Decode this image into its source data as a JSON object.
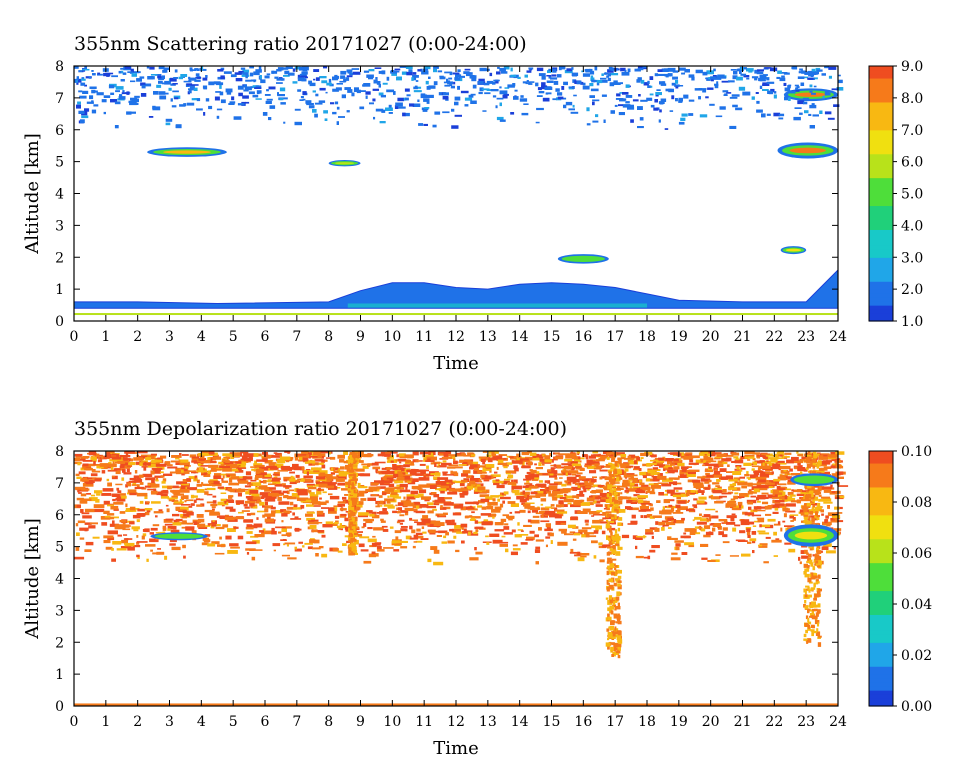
{
  "chart_data": [
    {
      "type": "heatmap",
      "title": "355nm Scattering ratio  20171027 (0:00-24:00)",
      "xlabel": "Time",
      "ylabel": "Altitude [km]",
      "xlim": [
        0,
        24
      ],
      "ylim": [
        0,
        8
      ],
      "x_ticks": [
        "0",
        "1",
        "2",
        "3",
        "4",
        "5",
        "6",
        "7",
        "8",
        "9",
        "10",
        "11",
        "12",
        "13",
        "14",
        "15",
        "16",
        "17",
        "18",
        "19",
        "20",
        "21",
        "22",
        "23",
        "24"
      ],
      "y_ticks": [
        "0",
        "1",
        "2",
        "3",
        "4",
        "5",
        "6",
        "7",
        "8"
      ],
      "colorbar": {
        "range": [
          1.0,
          9.0
        ],
        "tick_labels": [
          "1.0",
          "2.0",
          "3.0",
          "4.0",
          "5.0",
          "6.0",
          "7.0",
          "8.0",
          "9.0"
        ]
      },
      "features": [
        {
          "kind": "boundary-layer",
          "x": [
            0,
            24
          ],
          "y_top_profile": [
            [
              0,
              0.6
            ],
            [
              2,
              0.6
            ],
            [
              4.5,
              0.55
            ],
            [
              8,
              0.6
            ],
            [
              9,
              0.95
            ],
            [
              10,
              1.2
            ],
            [
              11,
              1.2
            ],
            [
              12,
              1.05
            ],
            [
              13,
              1.0
            ],
            [
              14,
              1.15
            ],
            [
              15,
              1.2
            ],
            [
              16,
              1.15
            ],
            [
              17,
              1.05
            ],
            [
              18,
              0.85
            ],
            [
              19,
              0.65
            ],
            [
              21,
              0.6
            ],
            [
              23,
              0.6
            ],
            [
              24,
              1.6
            ]
          ],
          "value": 1.8
        },
        {
          "kind": "cloud",
          "x": [
            2.3,
            4.8
          ],
          "y": [
            5.15,
            5.45
          ],
          "value": 7.5
        },
        {
          "kind": "cloud",
          "x": [
            8.0,
            9.0
          ],
          "y": [
            4.85,
            5.05
          ],
          "value": 6.0
        },
        {
          "kind": "cloud",
          "x": [
            15.2,
            16.8
          ],
          "y": [
            1.8,
            2.1
          ],
          "value": 5.0
        },
        {
          "kind": "cloud",
          "x": [
            22.2,
            23.0
          ],
          "y": [
            2.1,
            2.35
          ],
          "value": 6.5
        },
        {
          "kind": "cloud",
          "x": [
            22.1,
            24.0
          ],
          "y": [
            5.1,
            5.6
          ],
          "value": 8.0
        },
        {
          "kind": "cloud",
          "x": [
            22.3,
            24.0
          ],
          "y": [
            6.9,
            7.3
          ],
          "value": 8.0
        },
        {
          "kind": "noise-field",
          "x": [
            0,
            24
          ],
          "y": [
            6.0,
            8.0
          ],
          "value": 1.5
        },
        {
          "kind": "surface-line",
          "x": [
            0,
            24
          ],
          "y": [
            0.2,
            0.25
          ],
          "value": 6.0
        }
      ]
    },
    {
      "type": "heatmap",
      "title": "355nm Depolarization ratio  20171027 (0:00-24:00)",
      "xlabel": "Time",
      "ylabel": "Altitude [km]",
      "xlim": [
        0,
        24
      ],
      "ylim": [
        0,
        8
      ],
      "x_ticks": [
        "0",
        "1",
        "2",
        "3",
        "4",
        "5",
        "6",
        "7",
        "8",
        "9",
        "10",
        "11",
        "12",
        "13",
        "14",
        "15",
        "16",
        "17",
        "18",
        "19",
        "20",
        "21",
        "22",
        "23",
        "24"
      ],
      "y_ticks": [
        "0",
        "1",
        "2",
        "3",
        "4",
        "5",
        "6",
        "7",
        "8"
      ],
      "colorbar": {
        "range": [
          0.0,
          0.1
        ],
        "tick_labels": [
          "0.00",
          "0.02",
          "0.04",
          "0.06",
          "0.08",
          "0.10"
        ]
      },
      "features": [
        {
          "kind": "noise-field",
          "x": [
            0,
            24
          ],
          "y": [
            4.5,
            8.0
          ],
          "value": 0.09
        },
        {
          "kind": "cloud",
          "x": [
            2.4,
            4.2
          ],
          "y": [
            5.2,
            5.45
          ],
          "value": 0.05
        },
        {
          "kind": "streak",
          "x": [
            8.6,
            8.8
          ],
          "y": [
            4.8,
            8.0
          ],
          "value": 0.09
        },
        {
          "kind": "streak",
          "x": [
            16.7,
            17.1
          ],
          "y": [
            1.6,
            8.0
          ],
          "value": 0.09
        },
        {
          "kind": "streak",
          "x": [
            22.9,
            23.4
          ],
          "y": [
            2.0,
            8.0
          ],
          "value": 0.09
        },
        {
          "kind": "cloud",
          "x": [
            22.3,
            24.0
          ],
          "y": [
            5.0,
            5.7
          ],
          "value": 0.07
        },
        {
          "kind": "cloud",
          "x": [
            22.5,
            24.0
          ],
          "y": [
            6.9,
            7.3
          ],
          "value": 0.05
        },
        {
          "kind": "surface-line",
          "x": [
            0,
            24
          ],
          "y": [
            0.0,
            0.08
          ],
          "value": 0.09
        }
      ]
    }
  ],
  "colors": {
    "scale": [
      "#1a3fd9",
      "#1f72e8",
      "#20a6e8",
      "#18c9c8",
      "#20d07a",
      "#4ede3a",
      "#b8e21a",
      "#f0e010",
      "#f8b812",
      "#f67a1a",
      "#ef4d20"
    ]
  }
}
